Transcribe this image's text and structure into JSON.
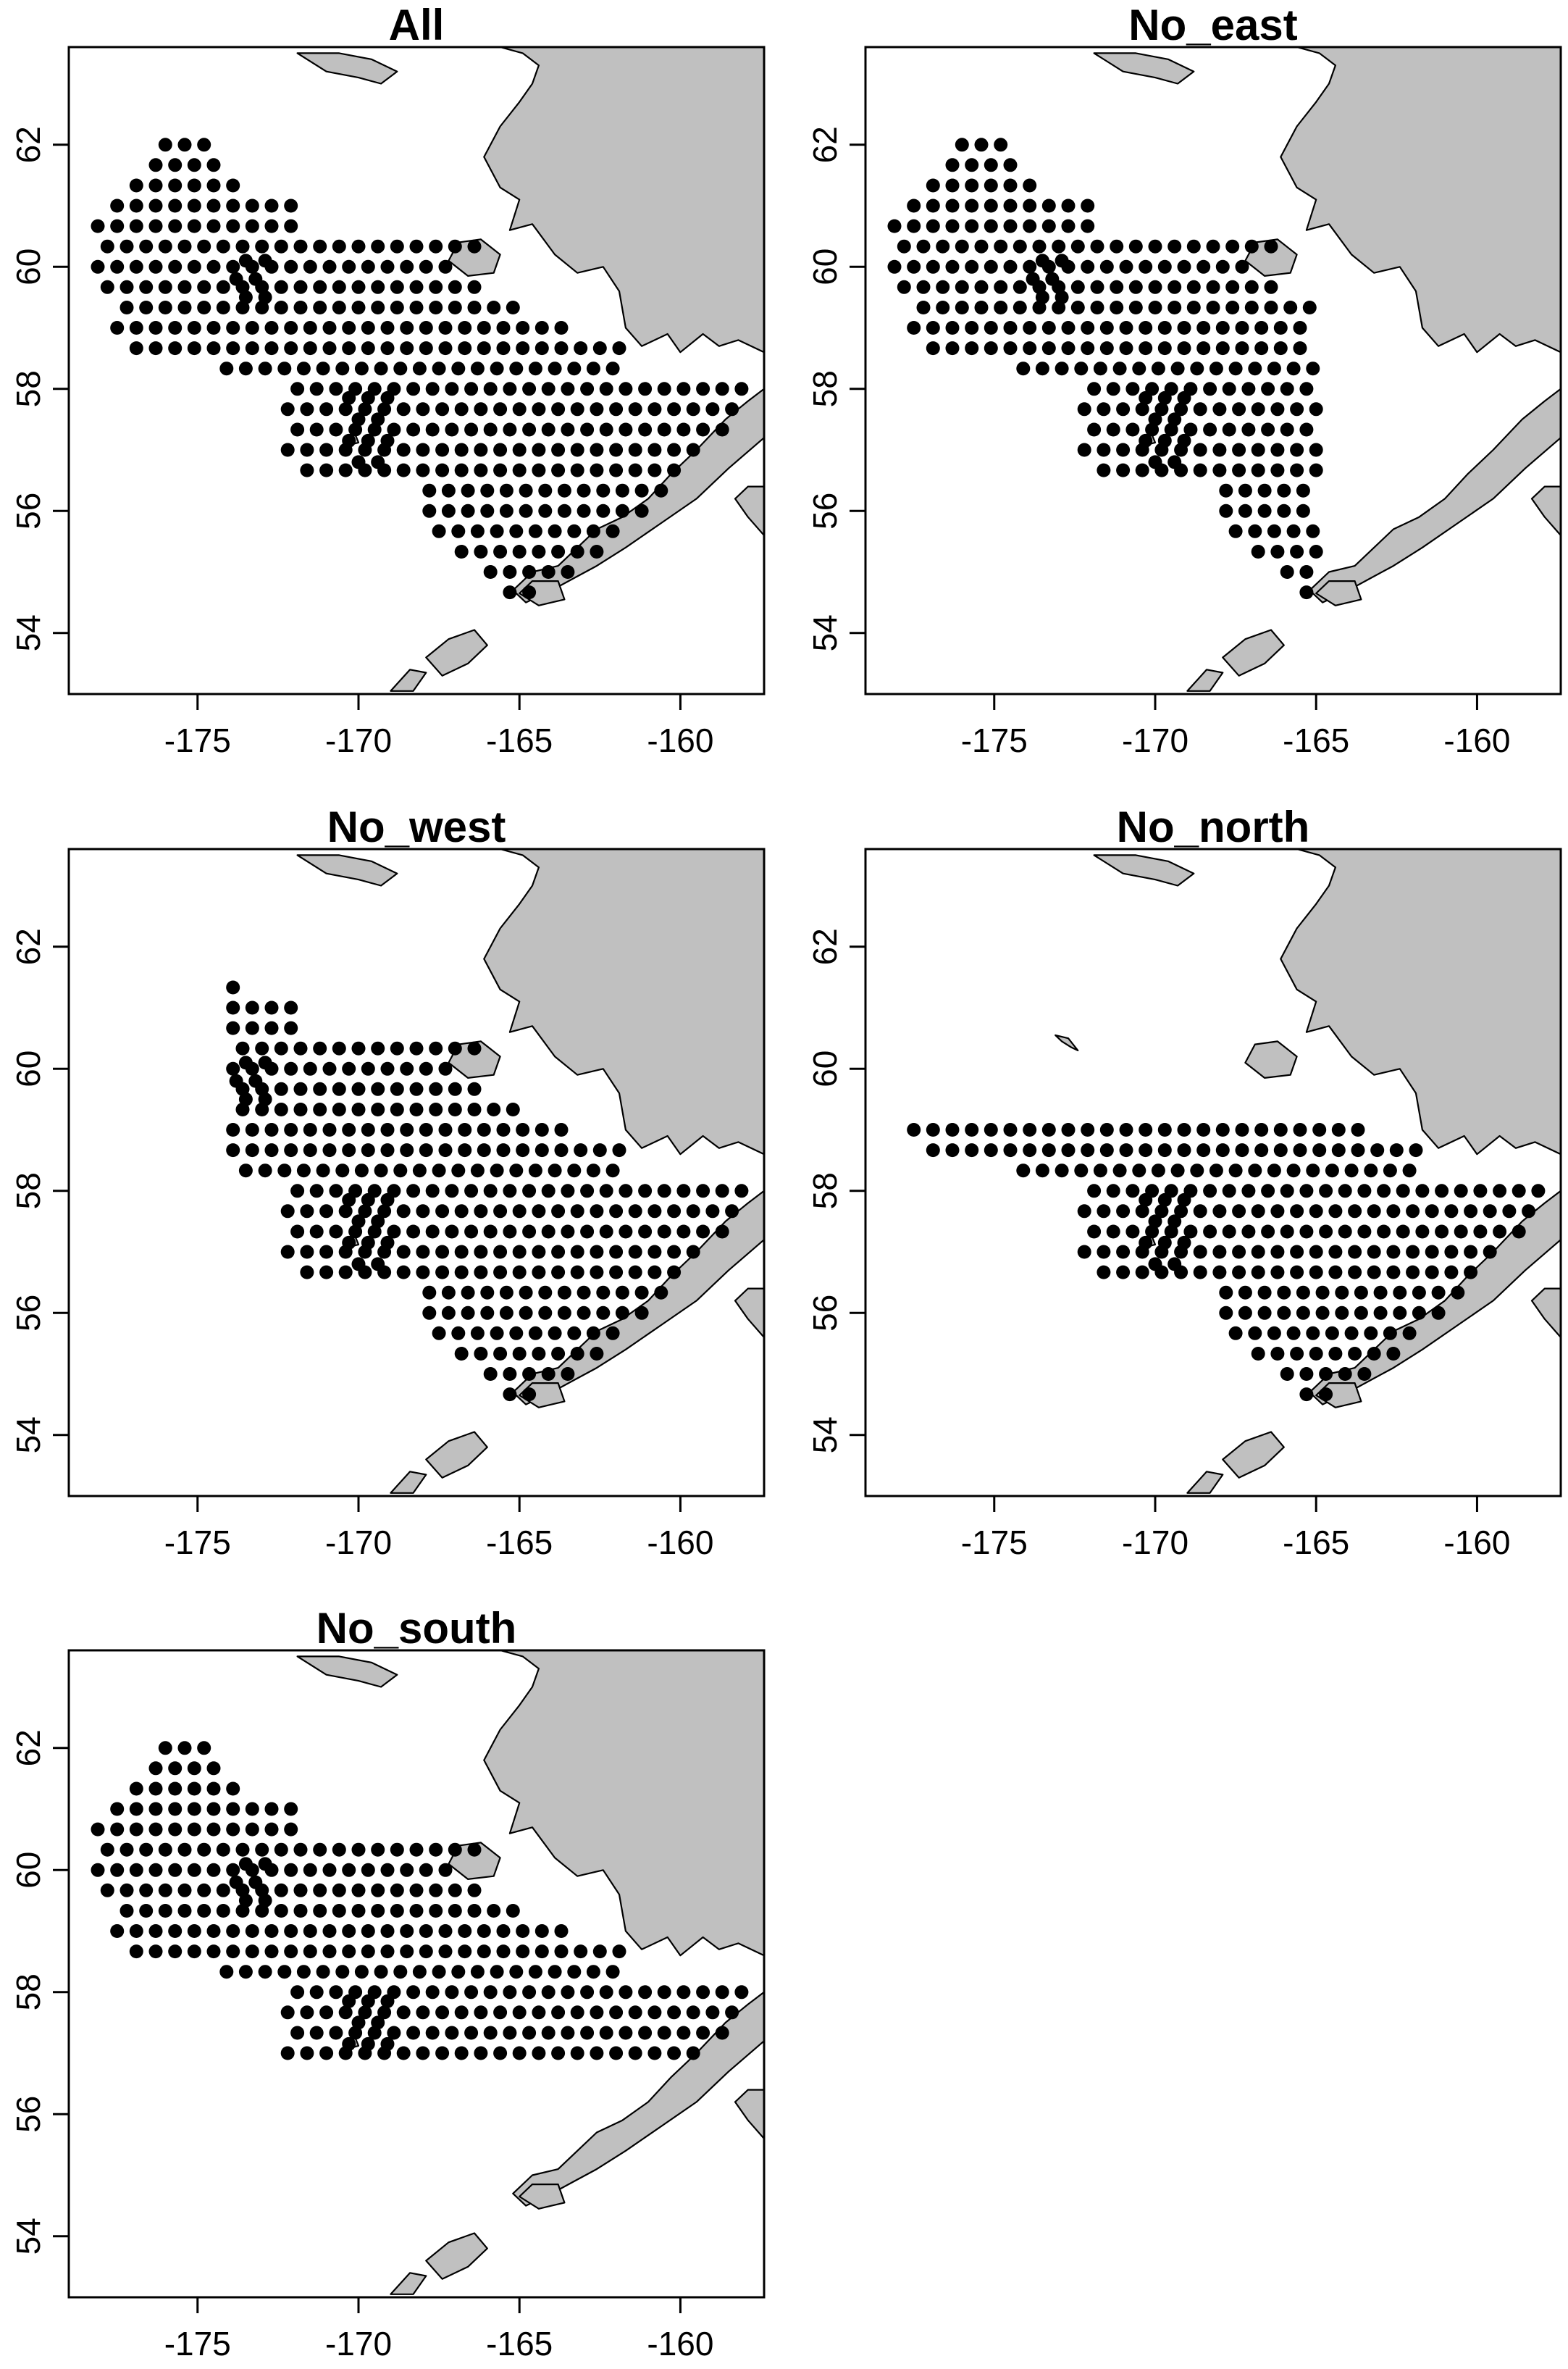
{
  "figure": {
    "panels": [
      {
        "title": "All",
        "variant": "all"
      },
      {
        "title": "No_east",
        "variant": "no_east"
      },
      {
        "title": "No_west",
        "variant": "no_west"
      },
      {
        "title": "No_north",
        "variant": "no_north"
      },
      {
        "title": "No_south",
        "variant": "no_south"
      }
    ]
  },
  "chart_data": {
    "type": "scatter",
    "map_extent": {
      "lon": [
        -179.0,
        -157.4
      ],
      "lat": [
        53.0,
        63.6
      ]
    },
    "x_ticks": [
      -175,
      -170,
      -165,
      -160
    ],
    "y_ticks": [
      54,
      56,
      58,
      60,
      62
    ],
    "x_tick_labels": [
      "-175",
      "-170",
      "-165",
      "-160"
    ],
    "y_tick_labels": [
      "54",
      "56",
      "58",
      "60",
      "62"
    ],
    "grid": false,
    "colors": {
      "land": "#c0c0c0",
      "coast": "#000000",
      "station": "#000000",
      "frame": "#000000"
    },
    "station_grid": {
      "approximate": true,
      "lat_step": 0.3333,
      "rows": [
        {
          "lat": 62.0,
          "lon_start": -176.0,
          "lon_end": -174.4,
          "lon_step": 0.6
        },
        {
          "lat": 61.667,
          "lon_start": -176.3,
          "lon_end": -174.0,
          "lon_step": 0.6
        },
        {
          "lat": 61.333,
          "lon_start": -176.9,
          "lon_end": -173.8,
          "lon_step": 0.6
        },
        {
          "lat": 61.0,
          "lon_start": -177.5,
          "lon_end": -171.7,
          "lon_step": 0.6
        },
        {
          "lat": 60.667,
          "lon_start": -178.1,
          "lon_end": -172.0,
          "lon_step": 0.6
        },
        {
          "lat": 60.333,
          "lon_start": -177.8,
          "lon_end": -165.9,
          "lon_step": 0.6
        },
        {
          "lat": 60.0,
          "lon_start": -178.1,
          "lon_end": -167.2,
          "lon_step": 0.6
        },
        {
          "lat": 59.667,
          "lon_start": -177.8,
          "lon_end": -166.2,
          "lon_step": 0.6
        },
        {
          "lat": 59.333,
          "lon_start": -177.2,
          "lon_end": -164.8,
          "lon_step": 0.6
        },
        {
          "lat": 59.0,
          "lon_start": -177.5,
          "lon_end": -163.4,
          "lon_step": 0.6
        },
        {
          "lat": 58.667,
          "lon_start": -176.9,
          "lon_end": -161.7,
          "lon_step": 0.6
        },
        {
          "lat": 58.333,
          "lon_start": -174.1,
          "lon_end": -161.9,
          "lon_step": 0.6
        },
        {
          "lat": 58.0,
          "lon_start": -171.9,
          "lon_end": -157.9,
          "lon_step": 0.6
        },
        {
          "lat": 57.667,
          "lon_start": -172.2,
          "lon_end": -158.2,
          "lon_step": 0.6
        },
        {
          "lat": 57.333,
          "lon_start": -171.9,
          "lon_end": -158.5,
          "lon_step": 0.6
        },
        {
          "lat": 57.0,
          "lon_start": -172.2,
          "lon_end": -159.1,
          "lon_step": 0.6
        },
        {
          "lat": 56.667,
          "lon_start": -171.6,
          "lon_end": -159.7,
          "lon_step": 0.6
        },
        {
          "lat": 56.333,
          "lon_start": -167.8,
          "lon_end": -160.5,
          "lon_step": 0.6
        },
        {
          "lat": 56.0,
          "lon_start": -167.8,
          "lon_end": -161.1,
          "lon_step": 0.6
        },
        {
          "lat": 55.667,
          "lon_start": -167.5,
          "lon_end": -161.7,
          "lon_step": 0.6
        },
        {
          "lat": 55.333,
          "lon_start": -166.8,
          "lon_end": -162.5,
          "lon_step": 0.6
        },
        {
          "lat": 55.0,
          "lon_start": -165.9,
          "lon_end": -163.4,
          "lon_step": 0.6
        },
        {
          "lat": 54.667,
          "lon_start": -165.3,
          "lon_end": -164.2,
          "lon_step": 0.6
        }
      ],
      "extra_points": [
        {
          "lon": -173.5,
          "lat": 60.1
        },
        {
          "lon": -173.2,
          "lat": 59.8
        },
        {
          "lon": -172.9,
          "lat": 60.1
        },
        {
          "lon": -173.5,
          "lat": 59.5
        },
        {
          "lon": -172.9,
          "lat": 59.5
        },
        {
          "lon": -173.8,
          "lat": 59.8
        },
        {
          "lon": -170.3,
          "lat": 57.85
        },
        {
          "lon": -169.7,
          "lat": 57.85
        },
        {
          "lon": -169.1,
          "lat": 57.85
        },
        {
          "lon": -170.0,
          "lat": 57.5
        },
        {
          "lon": -169.4,
          "lat": 57.5
        },
        {
          "lon": -170.3,
          "lat": 57.15
        },
        {
          "lon": -169.7,
          "lat": 57.15
        },
        {
          "lon": -169.1,
          "lat": 57.15
        },
        {
          "lon": -170.0,
          "lat": 56.8
        },
        {
          "lon": -169.4,
          "lat": 56.8
        }
      ],
      "subsets": {
        "all": {},
        "no_east": {
          "max_lon": -165.0
        },
        "no_west": {
          "min_lon": -174.0
        },
        "no_north": {
          "max_lat": 59.1
        },
        "no_south": {
          "min_lat": 56.9
        }
      }
    },
    "land": {
      "approximate": true,
      "polygons": [
        {
          "name": "Alaska mainland",
          "coords": [
            [
              -165.6,
              63.6
            ],
            [
              -157.4,
              63.6
            ],
            [
              -157.4,
              58.6
            ],
            [
              -158.2,
              58.8
            ],
            [
              -158.8,
              58.7
            ],
            [
              -159.3,
              58.9
            ],
            [
              -160.0,
              58.6
            ],
            [
              -160.4,
              58.9
            ],
            [
              -161.2,
              58.7
            ],
            [
              -161.7,
              59.0
            ],
            [
              -161.9,
              59.6
            ],
            [
              -162.4,
              60.0
            ],
            [
              -163.2,
              59.9
            ],
            [
              -163.9,
              60.2
            ],
            [
              -164.6,
              60.7
            ],
            [
              -165.3,
              60.6
            ],
            [
              -165.0,
              61.1
            ],
            [
              -165.6,
              61.3
            ],
            [
              -166.1,
              61.8
            ],
            [
              -165.6,
              62.3
            ],
            [
              -165.0,
              62.7
            ],
            [
              -164.6,
              63.0
            ],
            [
              -164.4,
              63.3
            ],
            [
              -164.9,
              63.5
            ]
          ]
        },
        {
          "name": "St. Lawrence Island",
          "coords": [
            [
              -171.9,
              63.5
            ],
            [
              -171.0,
              63.2
            ],
            [
              -170.0,
              63.1
            ],
            [
              -169.3,
              63.0
            ],
            [
              -168.8,
              63.2
            ],
            [
              -169.6,
              63.4
            ],
            [
              -170.6,
              63.5
            ]
          ]
        },
        {
          "name": "Nunivak Island",
          "coords": [
            [
              -166.9,
              60.4
            ],
            [
              -166.2,
              60.45
            ],
            [
              -165.6,
              60.2
            ],
            [
              -165.8,
              59.9
            ],
            [
              -166.6,
              59.85
            ],
            [
              -167.2,
              60.1
            ]
          ]
        },
        {
          "name": "Alaska Peninsula",
          "coords": [
            [
              -157.4,
              58.0
            ],
            [
              -157.4,
              57.2
            ],
            [
              -158.5,
              56.7
            ],
            [
              -159.5,
              56.2
            ],
            [
              -160.6,
              55.8
            ],
            [
              -161.7,
              55.4
            ],
            [
              -162.6,
              55.1
            ],
            [
              -163.3,
              54.9
            ],
            [
              -164.0,
              54.7
            ],
            [
              -164.8,
              54.5
            ],
            [
              -165.2,
              54.7
            ],
            [
              -164.6,
              55.0
            ],
            [
              -163.8,
              55.1
            ],
            [
              -163.2,
              55.4
            ],
            [
              -162.6,
              55.7
            ],
            [
              -161.8,
              55.9
            ],
            [
              -161.0,
              56.2
            ],
            [
              -160.3,
              56.6
            ],
            [
              -159.5,
              57.0
            ],
            [
              -158.6,
              57.5
            ],
            [
              -157.9,
              57.8
            ]
          ]
        },
        {
          "name": "Unimak Island",
          "coords": [
            [
              -165.0,
              54.65
            ],
            [
              -164.4,
              54.45
            ],
            [
              -163.6,
              54.55
            ],
            [
              -163.8,
              54.85
            ],
            [
              -164.6,
              54.85
            ]
          ]
        },
        {
          "name": "Kodiak area",
          "coords": [
            [
              -157.4,
              56.4
            ],
            [
              -157.4,
              55.6
            ],
            [
              -157.9,
              55.9
            ],
            [
              -158.3,
              56.2
            ],
            [
              -157.9,
              56.4
            ]
          ]
        },
        {
          "name": "Unalaska Island",
          "coords": [
            [
              -167.9,
              53.6
            ],
            [
              -167.2,
              53.9
            ],
            [
              -166.4,
              54.05
            ],
            [
              -166.0,
              53.8
            ],
            [
              -166.6,
              53.5
            ],
            [
              -167.4,
              53.3
            ]
          ]
        },
        {
          "name": "Umnak Island",
          "coords": [
            [
              -169.0,
              53.05
            ],
            [
              -168.4,
              53.4
            ],
            [
              -167.9,
              53.35
            ],
            [
              -168.3,
              53.05
            ]
          ]
        },
        {
          "name": "Pribilof - St. Paul",
          "coords": [
            [
              -170.4,
              57.2
            ],
            [
              -170.1,
              57.25
            ],
            [
              -170.0,
              57.12
            ],
            [
              -170.3,
              57.08
            ]
          ]
        }
      ],
      "no_north_extra": [
        {
          "name": "St. Matthew Island",
          "coords": [
            [
              -173.1,
              60.55
            ],
            [
              -172.7,
              60.5
            ],
            [
              -172.4,
              60.3
            ],
            [
              -172.6,
              60.35
            ],
            [
              -172.9,
              60.45
            ]
          ]
        }
      ]
    }
  }
}
